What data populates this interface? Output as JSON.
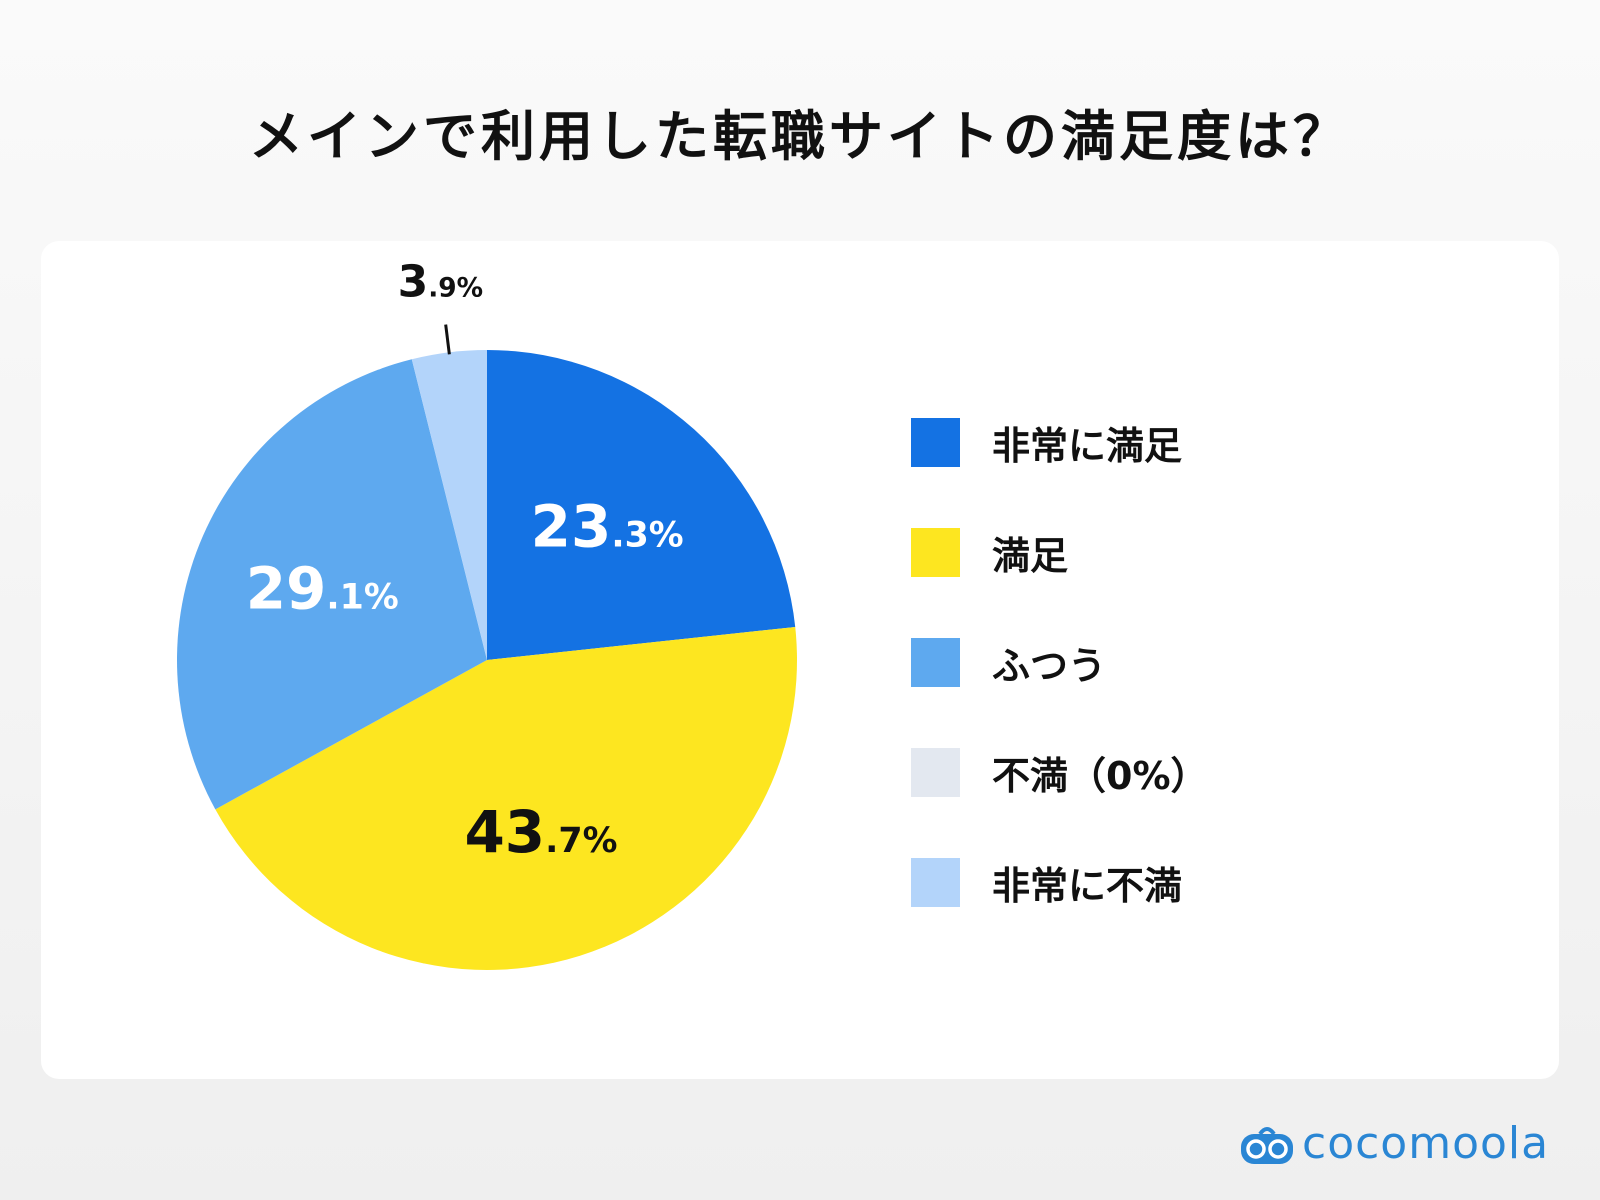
{
  "chart_data": {
    "type": "pie",
    "title": "メインで利用した転職サイトの満足度は？",
    "start": "top",
    "direction": "clockwise",
    "slices": [
      {
        "label": "非常に満足",
        "value": 23.3,
        "display_int": "23",
        "display_dec": ".3%",
        "color": "#1472e3",
        "text_color": "#ffffff"
      },
      {
        "label": "満足",
        "value": 43.7,
        "display_int": "43",
        "display_dec": ".7%",
        "color": "#fde620",
        "text_color": "#111111"
      },
      {
        "label": "ふつう",
        "value": 29.1,
        "display_int": "29",
        "display_dec": ".1%",
        "color": "#5ea9ef",
        "text_color": "#ffffff"
      },
      {
        "label": "不満（0%）",
        "value": 0,
        "display_int": "",
        "display_dec": "",
        "color": "#e3e8f0",
        "text_color": "#111111"
      },
      {
        "label": "非常に不満",
        "value": 3.9,
        "display_int": "3",
        "display_dec": ".9%",
        "color": "#b3d4fa",
        "text_color": "#111111"
      }
    ],
    "legend_position": "right"
  },
  "logo": {
    "text": "cocomoola",
    "color": "#2a86d4"
  }
}
